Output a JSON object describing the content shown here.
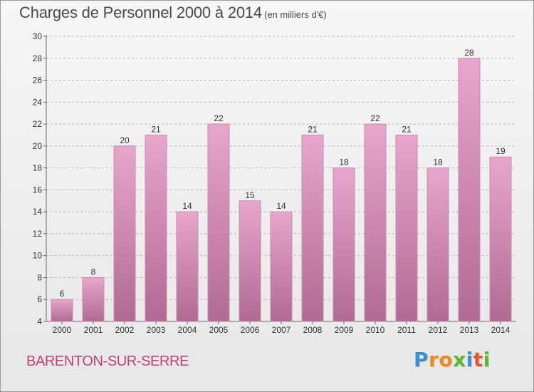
{
  "header": {
    "title": "Charges de Personnel 2000 à 2014",
    "subtitle": "(en milliers d'€)"
  },
  "footer": {
    "commune": "BARENTON-SUR-SERRE",
    "logo_letters": [
      {
        "char": "P",
        "color": "#3a8fd6"
      },
      {
        "char": "r",
        "color": "#f08a1c"
      },
      {
        "char": "o",
        "color": "#f08a1c"
      },
      {
        "char": "x",
        "color": "#5bb830"
      },
      {
        "char": "i",
        "color": "#3a8fd6"
      },
      {
        "char": "t",
        "color": "#e8542b"
      },
      {
        "char": "i",
        "color": "#5bb830"
      }
    ]
  },
  "colors": {
    "bar_top": "#e8a6cc",
    "bar_bottom": "#b06a93",
    "bar_edge": "#c98aae",
    "grid": "#b8b8b8",
    "axis_text": "#333333"
  },
  "chart_data": {
    "type": "bar",
    "title": "Charges de Personnel 2000 à 2014",
    "subtitle": "(en milliers d'€)",
    "categories": [
      "2000",
      "2001",
      "2002",
      "2003",
      "2004",
      "2005",
      "2006",
      "2007",
      "2008",
      "2009",
      "2010",
      "2011",
      "2012",
      "2013",
      "2014"
    ],
    "values": [
      6,
      8,
      20,
      21,
      14,
      22,
      15,
      14,
      21,
      18,
      22,
      21,
      18,
      28,
      19
    ],
    "ylim": [
      4,
      30
    ],
    "yticks": [
      4,
      6,
      8,
      10,
      12,
      14,
      16,
      18,
      20,
      22,
      24,
      26,
      28,
      30
    ],
    "grid": true,
    "data_labels": true
  }
}
